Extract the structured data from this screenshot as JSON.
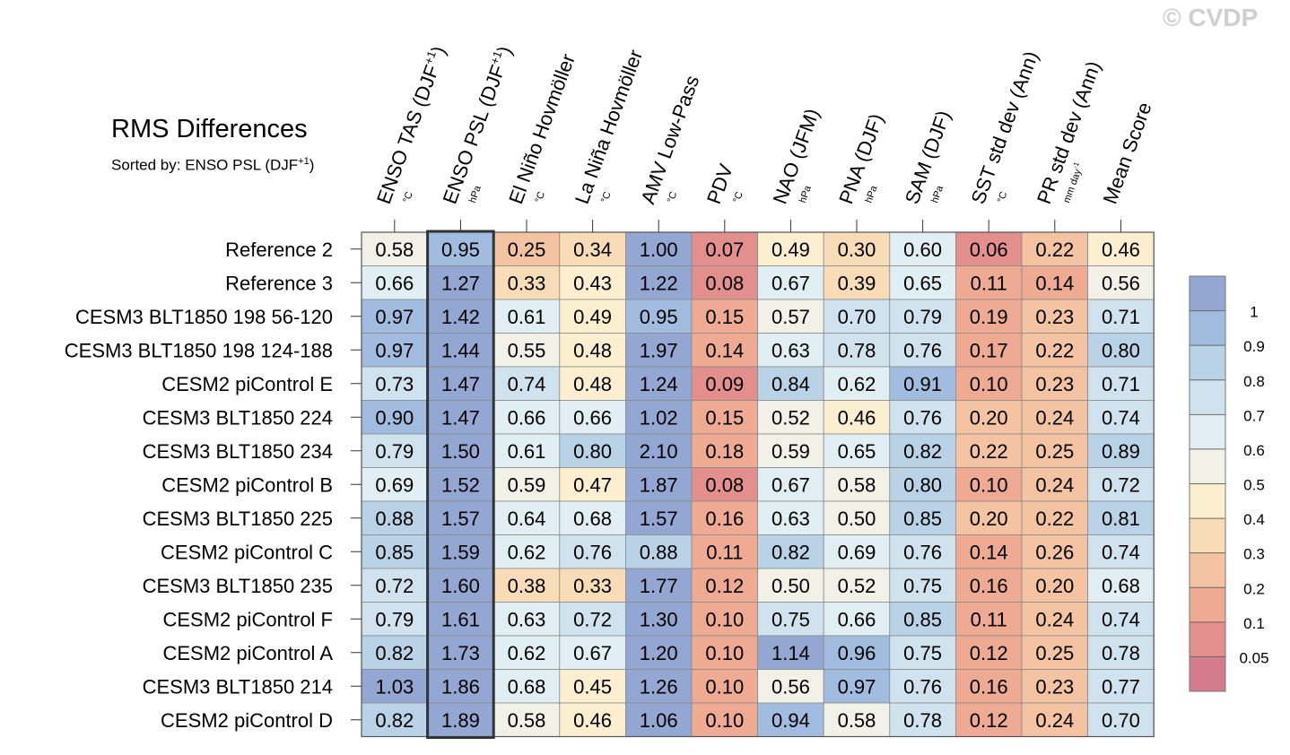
{
  "watermark": "© CVDP",
  "chart_data": {
    "type": "heatmap",
    "title": "RMS Differences",
    "subtitle": "Sorted by: ENSO PSL (DJF",
    "subtitle_sup": "+1",
    "subtitle_end": ")",
    "highlighted_column": "ENSO PSL (DJF+1)",
    "columns": [
      {
        "name": "ENSO TAS (DJF",
        "sup": "+1",
        "end": ")",
        "unit": "°C",
        "unit_sup": ""
      },
      {
        "name": "ENSO PSL (DJF",
        "sup": "+1",
        "end": ")",
        "unit": "hPa",
        "unit_sup": ""
      },
      {
        "name": "El Niño Hovmöller",
        "sup": "",
        "end": "",
        "unit": "°C",
        "unit_sup": ""
      },
      {
        "name": "La Niña Hovmöller",
        "sup": "",
        "end": "",
        "unit": "°C",
        "unit_sup": ""
      },
      {
        "name": "AMV Low-Pass",
        "sup": "",
        "end": "",
        "unit": "°C",
        "unit_sup": ""
      },
      {
        "name": "PDV",
        "sup": "",
        "end": "",
        "unit": "°C",
        "unit_sup": ""
      },
      {
        "name": "NAO (JFM)",
        "sup": "",
        "end": "",
        "unit": "hPa",
        "unit_sup": ""
      },
      {
        "name": "PNA (DJF)",
        "sup": "",
        "end": "",
        "unit": "hPa",
        "unit_sup": ""
      },
      {
        "name": "SAM (DJF)",
        "sup": "",
        "end": "",
        "unit": "hPa",
        "unit_sup": ""
      },
      {
        "name": "SST std dev (Ann)",
        "sup": "",
        "end": "",
        "unit": "°C",
        "unit_sup": ""
      },
      {
        "name": "PR std dev (Ann)",
        "sup": "",
        "end": "",
        "unit": "mm day",
        "unit_sup": "-1"
      },
      {
        "name": "Mean Score",
        "sup": "",
        "end": "",
        "unit": "",
        "unit_sup": ""
      }
    ],
    "rows": [
      "Reference 2",
      "Reference 3",
      "CESM3 BLT1850 198 56-120",
      "CESM3 BLT1850 198 124-188",
      "CESM2 piControl E",
      "CESM3 BLT1850 224",
      "CESM3 BLT1850 234",
      "CESM2 piControl B",
      "CESM3 BLT1850 225",
      "CESM2 piControl C",
      "CESM3 BLT1850 235",
      "CESM2 piControl F",
      "CESM2 piControl A",
      "CESM3 BLT1850 214",
      "CESM2 piControl D"
    ],
    "values": [
      [
        0.58,
        0.95,
        0.25,
        0.34,
        1.0,
        0.07,
        0.49,
        0.3,
        0.6,
        0.06,
        0.22,
        0.46
      ],
      [
        0.66,
        1.27,
        0.33,
        0.43,
        1.22,
        0.08,
        0.67,
        0.39,
        0.65,
        0.11,
        0.14,
        0.56
      ],
      [
        0.97,
        1.42,
        0.61,
        0.49,
        0.95,
        0.15,
        0.57,
        0.7,
        0.79,
        0.19,
        0.23,
        0.71
      ],
      [
        0.97,
        1.44,
        0.55,
        0.48,
        1.97,
        0.14,
        0.63,
        0.78,
        0.76,
        0.17,
        0.22,
        0.8
      ],
      [
        0.73,
        1.47,
        0.74,
        0.48,
        1.24,
        0.09,
        0.84,
        0.62,
        0.91,
        0.1,
        0.23,
        0.71
      ],
      [
        0.9,
        1.47,
        0.66,
        0.66,
        1.02,
        0.15,
        0.52,
        0.46,
        0.76,
        0.2,
        0.24,
        0.74
      ],
      [
        0.79,
        1.5,
        0.61,
        0.8,
        2.1,
        0.18,
        0.59,
        0.65,
        0.82,
        0.22,
        0.25,
        0.89
      ],
      [
        0.69,
        1.52,
        0.59,
        0.47,
        1.87,
        0.08,
        0.67,
        0.58,
        0.8,
        0.1,
        0.24,
        0.72
      ],
      [
        0.88,
        1.57,
        0.64,
        0.68,
        1.57,
        0.16,
        0.63,
        0.5,
        0.85,
        0.2,
        0.22,
        0.81
      ],
      [
        0.85,
        1.59,
        0.62,
        0.76,
        0.88,
        0.11,
        0.82,
        0.69,
        0.76,
        0.14,
        0.26,
        0.74
      ],
      [
        0.72,
        1.6,
        0.38,
        0.33,
        1.77,
        0.12,
        0.5,
        0.52,
        0.75,
        0.16,
        0.2,
        0.68
      ],
      [
        0.79,
        1.61,
        0.63,
        0.72,
        1.3,
        0.1,
        0.75,
        0.66,
        0.85,
        0.11,
        0.24,
        0.74
      ],
      [
        0.82,
        1.73,
        0.62,
        0.67,
        1.2,
        0.1,
        1.14,
        0.96,
        0.75,
        0.12,
        0.25,
        0.78
      ],
      [
        1.03,
        1.86,
        0.68,
        0.45,
        1.26,
        0.1,
        0.56,
        0.97,
        0.76,
        0.16,
        0.23,
        0.77
      ],
      [
        0.82,
        1.89,
        0.58,
        0.46,
        1.06,
        0.1,
        0.94,
        0.58,
        0.78,
        0.12,
        0.24,
        0.7
      ]
    ],
    "colorbar": {
      "levels": [
        0.05,
        0.1,
        0.2,
        0.3,
        0.4,
        0.5,
        0.6,
        0.7,
        0.8,
        0.9,
        1
      ],
      "labels": [
        "0.05",
        "0.1",
        "0.2",
        "0.3",
        "0.4",
        "0.5",
        "0.6",
        "0.7",
        "0.8",
        "0.9",
        "1"
      ],
      "colors": [
        "#d47c8c",
        "#e38f8d",
        "#eeaa92",
        "#f4c4a2",
        "#f8dcb8",
        "#fcefcf",
        "#f1f1e8",
        "#e1eef3",
        "#cfe2ed",
        "#b9d2e6",
        "#a2bcdf",
        "#94a7d3"
      ]
    }
  }
}
